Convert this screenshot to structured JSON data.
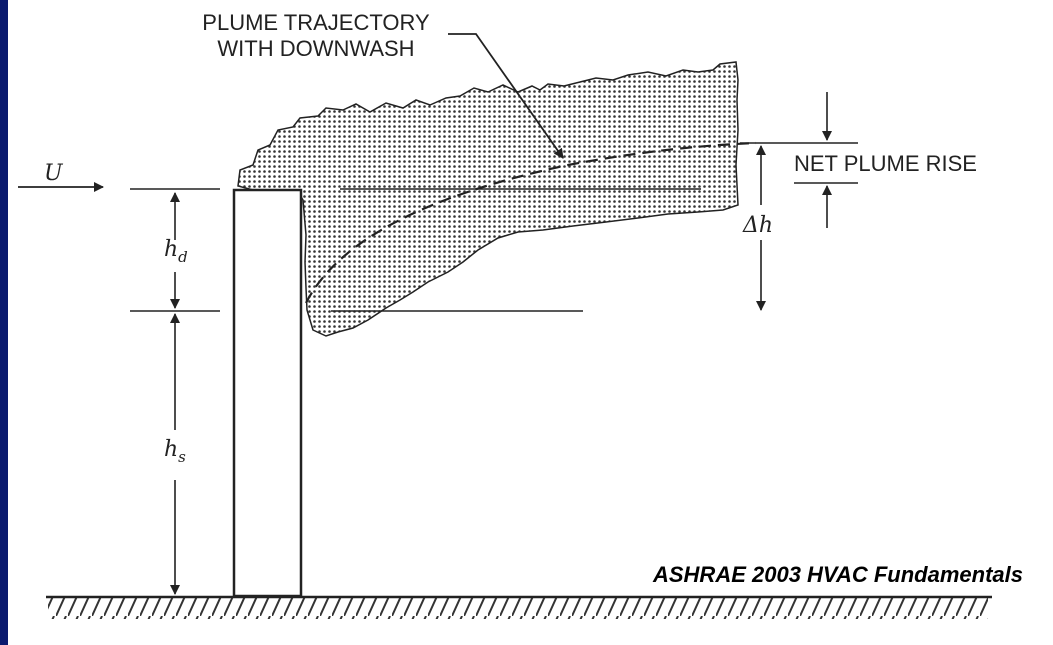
{
  "labels": {
    "trajectory_line1": "PLUME TRAJECTORY",
    "trajectory_line2": "WITH DOWNWASH",
    "net_plume_rise": "NET PLUME RISE",
    "wind_speed": "U",
    "delta_h": "Δh",
    "h_d_main": "h",
    "h_d_sub": "d",
    "h_s_main": "h",
    "h_s_sub": "s"
  },
  "source_credit": "ASHRAE 2003 HVAC Fundamentals",
  "colors": {
    "frame": "#0a1a6e",
    "background": "#ffffff",
    "ink": "#222222"
  }
}
